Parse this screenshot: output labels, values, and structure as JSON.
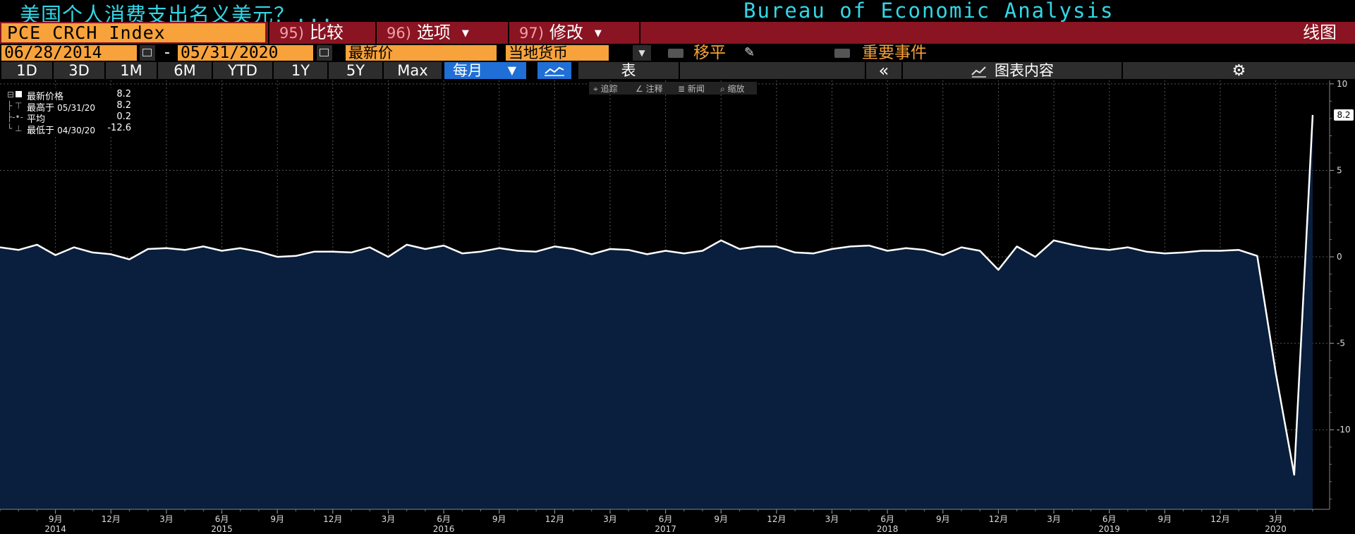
{
  "title_bar": {
    "left_title": "美国个人消费支出名义美元？...",
    "right_title": "Bureau of Economic Analysis"
  },
  "toolbar": {
    "ticker": "PCE CRCH Index",
    "compare": {
      "num": "95)",
      "label": "比较"
    },
    "options": {
      "num": "96)",
      "label": "选项"
    },
    "modify": {
      "num": "97)",
      "label": "修改"
    },
    "chart_type": "线图"
  },
  "range_bar": {
    "start_date": "06/28/2014",
    "dash": "-",
    "end_date": "05/31/2020",
    "field": "最新价",
    "currency": "当地货币",
    "moving_avg": "移平",
    "key_events": "重要事件"
  },
  "period_bar": {
    "periods": [
      "1D",
      "3D",
      "1M",
      "6M",
      "YTD",
      "1Y",
      "5Y",
      "Max"
    ],
    "frequency": "每月",
    "table_label": "表",
    "collapse": "«",
    "chart_content": "图表内容"
  },
  "annotation_bar": {
    "track": "追踪",
    "annotate": "注释",
    "news": "新闻",
    "zoom": "缩放"
  },
  "legend": {
    "rows": [
      {
        "label": "最新价格",
        "date": "",
        "value": "8.2"
      },
      {
        "label": "最高于",
        "date": "05/31/20",
        "value": "8.2"
      },
      {
        "label": "平均",
        "date": "",
        "value": "0.2"
      },
      {
        "label": "最低于",
        "date": "04/30/20",
        "value": "-12.6"
      }
    ]
  },
  "colors": {
    "title": "#33d6e6",
    "accent_orange": "#f7a23b",
    "toolbar_red": "#8a1422",
    "area_fill": "#0a1f3d",
    "line": "#ffffff",
    "active_blue": "#1f6fd6"
  },
  "chart_data": {
    "type": "area",
    "series": [
      {
        "name": "PCE CRCH Index",
        "x": [
          "2014-06",
          "2014-07",
          "2014-08",
          "2014-09",
          "2014-10",
          "2014-11",
          "2014-12",
          "2015-01",
          "2015-02",
          "2015-03",
          "2015-04",
          "2015-05",
          "2015-06",
          "2015-07",
          "2015-08",
          "2015-09",
          "2015-10",
          "2015-11",
          "2015-12",
          "2016-01",
          "2016-02",
          "2016-03",
          "2016-04",
          "2016-05",
          "2016-06",
          "2016-07",
          "2016-08",
          "2016-09",
          "2016-10",
          "2016-11",
          "2016-12",
          "2017-01",
          "2017-02",
          "2017-03",
          "2017-04",
          "2017-05",
          "2017-06",
          "2017-07",
          "2017-08",
          "2017-09",
          "2017-10",
          "2017-11",
          "2017-12",
          "2018-01",
          "2018-02",
          "2018-03",
          "2018-04",
          "2018-05",
          "2018-06",
          "2018-07",
          "2018-08",
          "2018-09",
          "2018-10",
          "2018-11",
          "2018-12",
          "2019-01",
          "2019-02",
          "2019-03",
          "2019-04",
          "2019-05",
          "2019-06",
          "2019-07",
          "2019-08",
          "2019-09",
          "2019-10",
          "2019-11",
          "2019-12",
          "2020-01",
          "2020-02",
          "2020-03",
          "2020-04",
          "2020-05"
        ],
        "values": [
          0.55,
          0.4,
          0.7,
          0.1,
          0.55,
          0.25,
          0.15,
          -0.15,
          0.45,
          0.5,
          0.4,
          0.6,
          0.35,
          0.5,
          0.3,
          0.0,
          0.05,
          0.3,
          0.3,
          0.25,
          0.55,
          0.0,
          0.7,
          0.45,
          0.65,
          0.2,
          0.3,
          0.5,
          0.35,
          0.3,
          0.6,
          0.45,
          0.15,
          0.45,
          0.4,
          0.15,
          0.35,
          0.2,
          0.35,
          0.95,
          0.45,
          0.6,
          0.6,
          0.25,
          0.2,
          0.45,
          0.6,
          0.65,
          0.35,
          0.5,
          0.4,
          0.1,
          0.55,
          0.35,
          -0.75,
          0.6,
          0.0,
          0.95,
          0.7,
          0.5,
          0.4,
          0.55,
          0.3,
          0.2,
          0.25,
          0.35,
          0.35,
          0.4,
          0.05,
          -6.7,
          -12.6,
          8.2
        ]
      }
    ],
    "ylim": [
      -14.6,
      10.2
    ],
    "y_ticks": [
      10,
      5,
      0,
      -5,
      -10
    ],
    "x_tick_labels": [
      {
        "date": "2014-09",
        "month": "9月",
        "year": "2014"
      },
      {
        "date": "2014-12",
        "month": "12月",
        "year": ""
      },
      {
        "date": "2015-03",
        "month": "3月",
        "year": ""
      },
      {
        "date": "2015-06",
        "month": "6月",
        "year": "2015"
      },
      {
        "date": "2015-09",
        "month": "9月",
        "year": ""
      },
      {
        "date": "2015-12",
        "month": "12月",
        "year": ""
      },
      {
        "date": "2016-03",
        "month": "3月",
        "year": ""
      },
      {
        "date": "2016-06",
        "month": "6月",
        "year": "2016"
      },
      {
        "date": "2016-09",
        "month": "9月",
        "year": ""
      },
      {
        "date": "2016-12",
        "month": "12月",
        "year": ""
      },
      {
        "date": "2017-03",
        "month": "3月",
        "year": ""
      },
      {
        "date": "2017-06",
        "month": "6月",
        "year": "2017"
      },
      {
        "date": "2017-09",
        "month": "9月",
        "year": ""
      },
      {
        "date": "2017-12",
        "month": "12月",
        "year": ""
      },
      {
        "date": "2018-03",
        "month": "3月",
        "year": ""
      },
      {
        "date": "2018-06",
        "month": "6月",
        "year": "2018"
      },
      {
        "date": "2018-09",
        "month": "9月",
        "year": ""
      },
      {
        "date": "2018-12",
        "month": "12月",
        "year": ""
      },
      {
        "date": "2019-03",
        "month": "3月",
        "year": ""
      },
      {
        "date": "2019-06",
        "month": "6月",
        "year": "2019"
      },
      {
        "date": "2019-09",
        "month": "9月",
        "year": ""
      },
      {
        "date": "2019-12",
        "month": "12月",
        "year": ""
      },
      {
        "date": "2020-03",
        "month": "3月",
        "year": "2020"
      }
    ],
    "last_value_label": "8.2",
    "grid": true
  }
}
